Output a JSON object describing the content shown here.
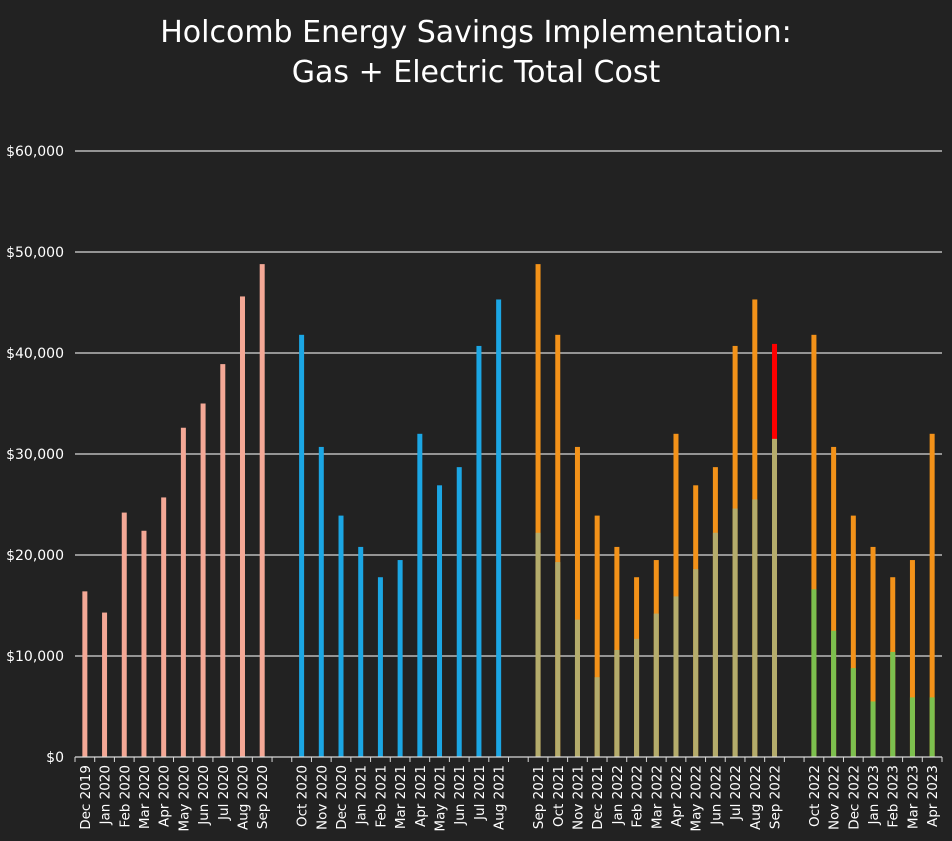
{
  "chart_data": {
    "type": "bar",
    "title_lines": [
      "Holcomb Energy Savings Implementation:",
      "Gas + Electric Total Cost"
    ],
    "ylim": [
      0,
      60000
    ],
    "y_ticks": [
      0,
      10000,
      20000,
      30000,
      40000,
      50000,
      60000
    ],
    "y_tick_labels": [
      "$0",
      "$10,000",
      "$20,000",
      "$30,000",
      "$40,000",
      "$50,000",
      "$60,000"
    ],
    "grid": true,
    "colors": {
      "background": "#222222",
      "gridline": "#d8d8d8",
      "group1": "#f4a896",
      "group2": "#1ba6e4",
      "group3_total": "#f39219",
      "group3_part": "#b4ac6c",
      "group3_highlight": "#ff0000",
      "group4_total": "#f39219",
      "group4_part": "#7cc04e"
    },
    "groups": [
      {
        "bars": [
          {
            "label": "Dec 2019",
            "total": 16400
          },
          {
            "label": "Jan 2020",
            "total": 14300
          },
          {
            "label": "Feb 2020",
            "total": 24200
          },
          {
            "label": "Mar 2020",
            "total": 22400
          },
          {
            "label": "Apr 2020",
            "total": 25700
          },
          {
            "label": "May 2020",
            "total": 32600
          },
          {
            "label": "Jun 2020",
            "total": 35000
          },
          {
            "label": "Jul 2020",
            "total": 38900
          },
          {
            "label": "Aug 2020",
            "total": 45600
          },
          {
            "label": "Sep 2020",
            "total": 48800
          }
        ]
      },
      {
        "bars": [
          {
            "label": "Oct 2020",
            "total": 41800
          },
          {
            "label": "Nov 2020",
            "total": 30700
          },
          {
            "label": "Dec 2020",
            "total": 23900
          },
          {
            "label": "Jan 2021",
            "total": 20800
          },
          {
            "label": "Feb 2021",
            "total": 17800
          },
          {
            "label": "Mar 2021",
            "total": 19500
          },
          {
            "label": "Apr 2021",
            "total": 32000
          },
          {
            "label": "May 2021",
            "total": 26900
          },
          {
            "label": "Jun 2021",
            "total": 28700
          },
          {
            "label": "Jul 2021",
            "total": 40700
          },
          {
            "label": "Aug 2021",
            "total": 45300
          }
        ]
      },
      {
        "bars": [
          {
            "label": "Sep 2021",
            "total": 48800,
            "part": 22200
          },
          {
            "label": "Oct 2021",
            "total": 41800,
            "part": 19300
          },
          {
            "label": "Nov 2021",
            "total": 30700,
            "part": 13600
          },
          {
            "label": "Dec 2021",
            "total": 23900,
            "part": 7900
          },
          {
            "label": "Jan 2022",
            "total": 20800,
            "part": 10600
          },
          {
            "label": "Feb 2022",
            "total": 17800,
            "part": 11700
          },
          {
            "label": "Mar 2022",
            "total": 19500,
            "part": 14200
          },
          {
            "label": "Apr 2022",
            "total": 32000,
            "part": 15900
          },
          {
            "label": "May 2022",
            "total": 26900,
            "part": 18600
          },
          {
            "label": "Jun 2022",
            "total": 28700,
            "part": 22200
          },
          {
            "label": "Jul 2022",
            "total": 40700,
            "part": 24600
          },
          {
            "label": "Aug 2022",
            "total": 45300,
            "part": 25500
          },
          {
            "label": "Sep 2022",
            "total": 40900,
            "part": 31500,
            "highlight": true
          }
        ]
      },
      {
        "bars": [
          {
            "label": "Oct 2022",
            "total": 41800,
            "part": 16600
          },
          {
            "label": "Nov 2022",
            "total": 30700,
            "part": 12500
          },
          {
            "label": "Dec 2022",
            "total": 23900,
            "part": 8800
          },
          {
            "label": "Jan 2023",
            "total": 20800,
            "part": 5500
          },
          {
            "label": "Feb 2023",
            "total": 17800,
            "part": 10400
          },
          {
            "label": "Mar 2023",
            "total": 19500,
            "part": 5900
          },
          {
            "label": "Apr 2023",
            "total": 32000,
            "part": 5900
          }
        ]
      }
    ]
  }
}
